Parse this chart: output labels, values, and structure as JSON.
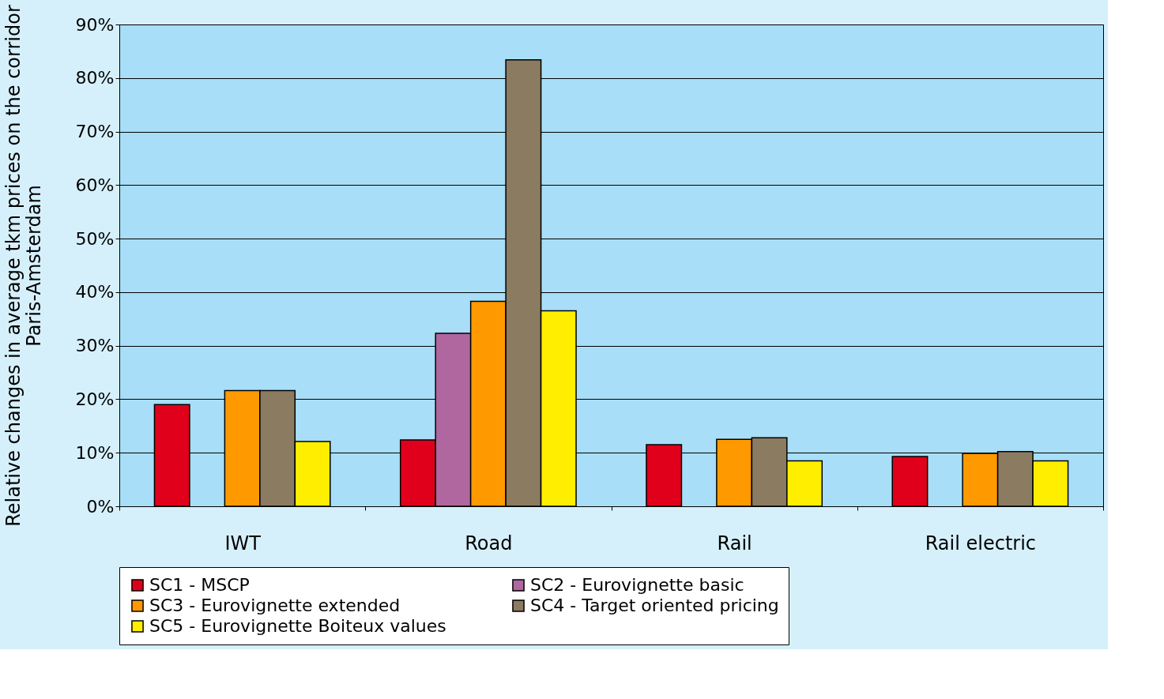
{
  "chart_data": {
    "type": "bar",
    "ylabel": "Relative changes in average tkm prices on the corridor Paris-Amsterdam",
    "categories": [
      "IWT",
      "Road",
      "Rail",
      "Rail electric"
    ],
    "series": [
      {
        "name": "SC1 - MSCP",
        "color": "#e0001b",
        "values": [
          19.0,
          12.4,
          11.5,
          9.3
        ]
      },
      {
        "name": "SC2 - Eurovignette basic",
        "color": "#b0669e",
        "values": [
          null,
          32.3,
          null,
          null
        ]
      },
      {
        "name": "SC3 - Eurovignette extended",
        "color": "#ff9900",
        "values": [
          21.6,
          38.3,
          12.5,
          9.9
        ]
      },
      {
        "name": "SC4 - Target oriented pricing",
        "color": "#8b7b61",
        "values": [
          21.6,
          83.4,
          12.8,
          10.2
        ]
      },
      {
        "name": "SC5 - Eurovignette Boiteux values",
        "color": "#ffee00",
        "values": [
          12.1,
          36.5,
          8.5,
          8.5
        ]
      }
    ],
    "ylim": [
      0,
      90
    ],
    "yticks": [
      {
        "value": 0,
        "label": "0%"
      },
      {
        "value": 10,
        "label": "10%"
      },
      {
        "value": 20,
        "label": "20%"
      },
      {
        "value": 30,
        "label": "30%"
      },
      {
        "value": 40,
        "label": "40%"
      },
      {
        "value": 50,
        "label": "50%"
      },
      {
        "value": 60,
        "label": "60%"
      },
      {
        "value": 70,
        "label": "70%"
      },
      {
        "value": 80,
        "label": "80%"
      },
      {
        "value": 90,
        "label": "90%"
      }
    ],
    "grid": "y",
    "legend": "bottom"
  }
}
